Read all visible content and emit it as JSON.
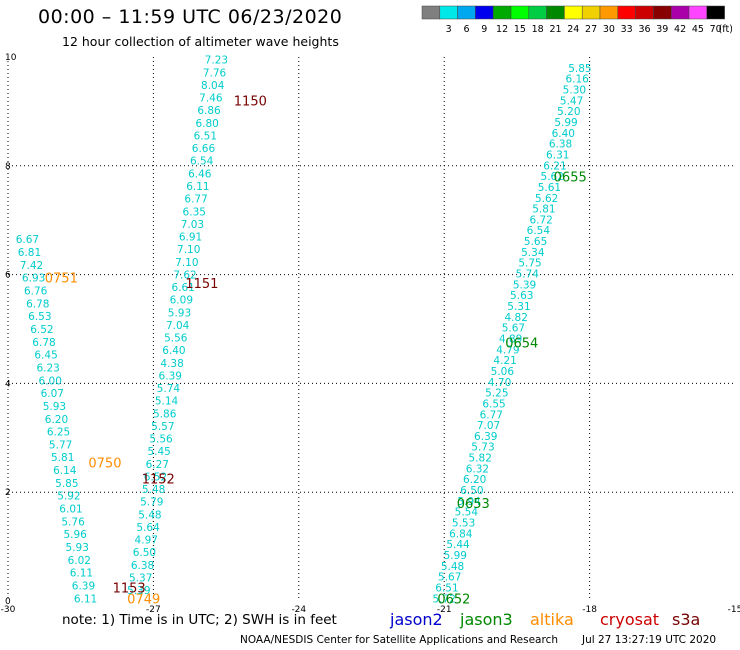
{
  "header": {
    "title": "00:00 – 11:59 UTC 06/23/2020",
    "subtitle": "12 hour collection of altimeter wave heights"
  },
  "legend": {
    "unit": "(ft)",
    "swatches": [
      {
        "label": "",
        "color": "#7f7f7f"
      },
      {
        "label": "3",
        "color": "#00e8e8"
      },
      {
        "label": "6",
        "color": "#00a8f0"
      },
      {
        "label": "9",
        "color": "#0000ee"
      },
      {
        "label": "12",
        "color": "#00aa00"
      },
      {
        "label": "15",
        "color": "#00ff00"
      },
      {
        "label": "18",
        "color": "#00cc44"
      },
      {
        "label": "21",
        "color": "#008800"
      },
      {
        "label": "24",
        "color": "#ffff00"
      },
      {
        "label": "27",
        "color": "#f0d000"
      },
      {
        "label": "30",
        "color": "#ff9900"
      },
      {
        "label": "33",
        "color": "#ff0000"
      },
      {
        "label": "36",
        "color": "#cc0000"
      },
      {
        "label": "39",
        "color": "#880000"
      },
      {
        "label": "42",
        "color": "#aa00aa"
      },
      {
        "label": "45",
        "color": "#ff44ff"
      },
      {
        "label": "70",
        "color": "#000000"
      }
    ]
  },
  "axes": {
    "x_ticks": [
      "-30",
      "-27",
      "-24",
      "-21",
      "-18",
      "-15"
    ],
    "y_ticks": [
      "0",
      "2",
      "4",
      "6",
      "8",
      "10"
    ],
    "xlim": [
      -30,
      -15
    ],
    "ylim": [
      0,
      10
    ],
    "grid": "dotted"
  },
  "track_colors": {
    "value": "#00cccc",
    "jason2": "#0000cc",
    "jason3": "#008800",
    "altika": "#ff8c00",
    "cryosat": "#cc0000",
    "s3a": "#770000"
  },
  "tracks": [
    {
      "sat": "altika",
      "time_label": "0751",
      "time_pos": [
        -28.9,
        5.95
      ],
      "values": [
        "6.67",
        "6.81",
        "7.42",
        "6.93",
        "6.76",
        "6.78",
        "6.53",
        "6.52",
        "6.78",
        "6.45",
        "6.23",
        "6.00",
        "6.07",
        "5.93",
        "6.20",
        "6.25",
        "5.77",
        "5.81",
        "6.14",
        "5.85",
        "5.92",
        "6.01",
        "5.76",
        "5.96",
        "5.93",
        "6.02",
        "6.11",
        "6.39",
        "6.11"
      ],
      "start": [
        -29.6,
        6.65
      ],
      "end": [
        -28.4,
        0.05
      ]
    },
    {
      "sat": "altika",
      "time_label": "0750",
      "time_pos": [
        -28.0,
        2.55
      ],
      "values": [],
      "start": [
        0,
        0
      ],
      "end": [
        0,
        0
      ]
    },
    {
      "sat": "altika",
      "time_label": "0749",
      "time_pos": [
        -27.2,
        0.05
      ],
      "values": [],
      "start": [
        0,
        0
      ],
      "end": [
        0,
        0
      ]
    },
    {
      "sat": "s3a",
      "time_label": "1150",
      "time_pos": [
        -25.0,
        9.2
      ],
      "values": [
        "7.23",
        "7.76",
        "8.04",
        "7.46",
        "6.86",
        "6.80",
        "6.51",
        "6.66",
        "6.54",
        "6.46",
        "6.11",
        "6.77",
        "6.35",
        "7.03",
        "6.91",
        "7.10",
        "7.10",
        "7.62",
        "6.61",
        "6.09",
        "5.93",
        "7.04",
        "5.56",
        "6.40",
        "4.38",
        "6.39",
        "5.74",
        "5.14",
        "5.86",
        "5.57",
        "5.56",
        "5.45",
        "6.27",
        "6.52",
        "5.48",
        "5.79",
        "5.48",
        "5.64",
        "4.97",
        "6.50",
        "6.38",
        "5.37",
        "5.39"
      ],
      "start": [
        -25.7,
        9.95
      ],
      "end": [
        -27.3,
        0.2
      ]
    },
    {
      "sat": "s3a",
      "time_label": "1151",
      "time_pos": [
        -26.0,
        5.85
      ],
      "values": [],
      "start": [
        0,
        0
      ],
      "end": [
        0,
        0
      ]
    },
    {
      "sat": "s3a",
      "time_label": "1152",
      "time_pos": [
        -26.9,
        2.25
      ],
      "values": [],
      "start": [
        0,
        0
      ],
      "end": [
        0,
        0
      ]
    },
    {
      "sat": "s3a",
      "time_label": "1153",
      "time_pos": [
        -27.5,
        0.25
      ],
      "values": [],
      "start": [
        0,
        0
      ],
      "end": [
        0,
        0
      ]
    },
    {
      "sat": "jason3",
      "time_label": "0655",
      "time_pos": [
        -18.4,
        7.8
      ],
      "values": [
        "5.85",
        "6.16",
        "5.30",
        "5.47",
        "5.20",
        "5.99",
        "6.40",
        "6.38",
        "6.31",
        "6.21",
        "5.62",
        "5.61",
        "5.62",
        "5.81",
        "6.72",
        "6.54",
        "5.65",
        "5.34",
        "5.75",
        "5.74",
        "5.39",
        "5.63",
        "5.31",
        "4.82",
        "5.67",
        "4.89",
        "4.79",
        "4.21",
        "5.06",
        "4.70",
        "5.25",
        "6.55",
        "6.77",
        "7.07",
        "6.39",
        "5.73",
        "5.82",
        "6.32",
        "6.20",
        "6.50",
        "5.94",
        "5.54",
        "5.53",
        "6.84",
        "5.44",
        "5.99",
        "5.48",
        "5.67",
        "6.51",
        "5.72"
      ],
      "start": [
        -18.2,
        9.8
      ],
      "end": [
        -21.0,
        0.05
      ]
    },
    {
      "sat": "jason3",
      "time_label": "0654",
      "time_pos": [
        -19.4,
        4.75
      ],
      "values": [],
      "start": [
        0,
        0
      ],
      "end": [
        0,
        0
      ]
    },
    {
      "sat": "jason3",
      "time_label": "0653",
      "time_pos": [
        -20.4,
        1.8
      ],
      "values": [],
      "start": [
        0,
        0
      ],
      "end": [
        0,
        0
      ]
    },
    {
      "sat": "jason3",
      "time_label": "0652",
      "time_pos": [
        -20.8,
        0.05
      ],
      "values": [],
      "start": [
        0,
        0
      ],
      "end": [
        0,
        0
      ]
    }
  ],
  "footer": {
    "note": "note:  1) Time is in UTC;  2) SWH is in feet",
    "sats": [
      {
        "name": "jason2",
        "color": "#0000cc"
      },
      {
        "name": "jason3",
        "color": "#008800"
      },
      {
        "name": "altika",
        "color": "#ff8c00"
      },
      {
        "name": "cryosat",
        "color": "#cc0000"
      },
      {
        "name": "s3a",
        "color": "#770000"
      }
    ],
    "credit": "NOAA/NESDIS Center for Satellite Applications and Research",
    "timestamp": "Jul 27 13:27:19 UTC 2020"
  }
}
